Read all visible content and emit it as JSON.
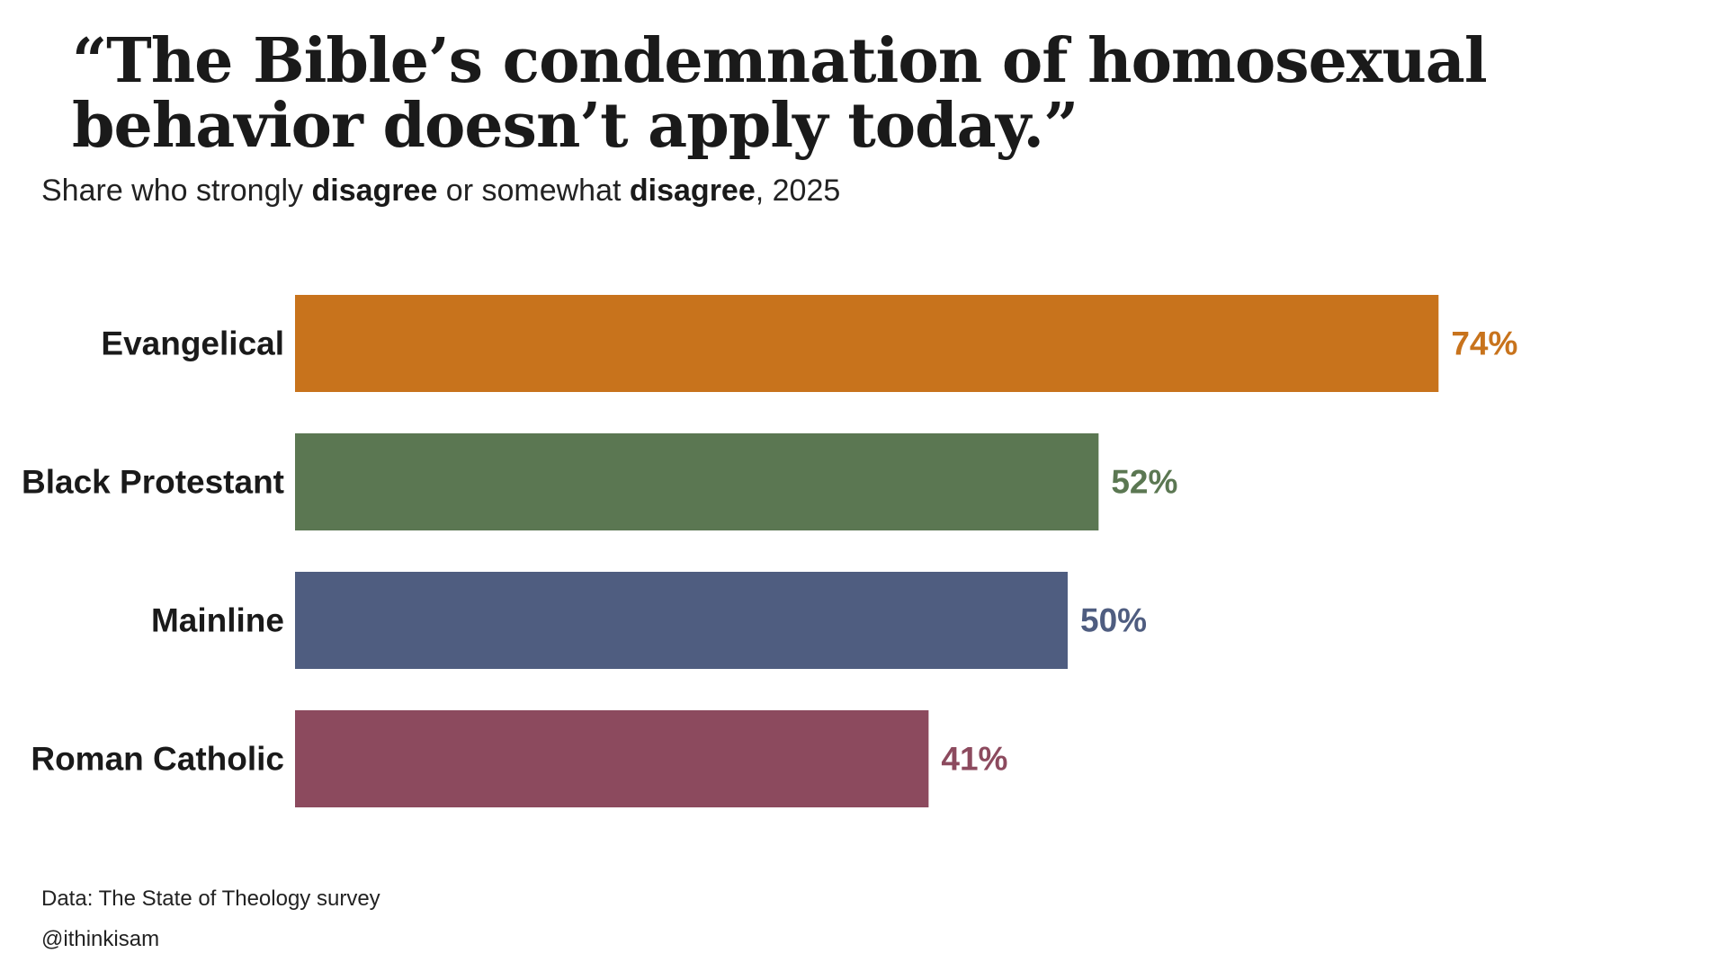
{
  "header": {
    "title": "“The Bible’s condemnation of homosexual behavior doesn’t apply today.”",
    "subtitle_parts": [
      {
        "text": "Share who strongly ",
        "bold": false
      },
      {
        "text": "disagree",
        "bold": true
      },
      {
        "text": " or somewhat ",
        "bold": false
      },
      {
        "text": "disagree",
        "bold": true
      },
      {
        "text": ", 2025",
        "bold": false
      }
    ]
  },
  "chart_data": {
    "type": "bar",
    "orientation": "horizontal",
    "title": "“The Bible’s condemnation of homosexual behavior doesn’t apply today.”",
    "subtitle": "Share who strongly disagree or somewhat disagree, 2025",
    "xlabel": "",
    "ylabel": "",
    "xlim": [
      0,
      100
    ],
    "unit": "%",
    "grid": false,
    "legend": "none",
    "categories": [
      "Evangelical",
      "Black Protestant",
      "Mainline",
      "Roman Catholic"
    ],
    "values": [
      74,
      52,
      50,
      41
    ],
    "value_labels": [
      "74%",
      "52%",
      "50%",
      "41%"
    ],
    "colors": [
      "#c8731c",
      "#5b7752",
      "#4f5d80",
      "#8c4a5e"
    ]
  },
  "footer": {
    "source": "Data: The State of Theology survey",
    "credit": "@ithinkisam"
  }
}
